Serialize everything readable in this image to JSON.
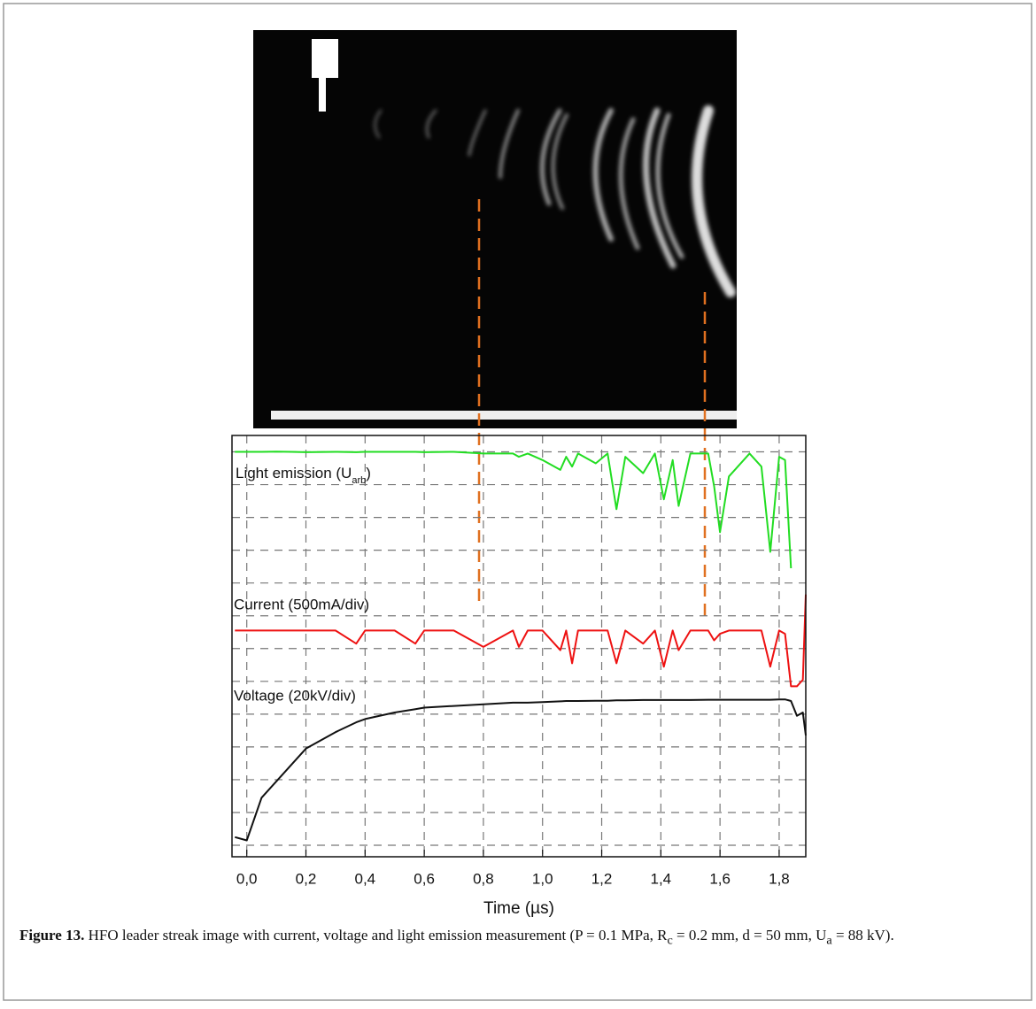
{
  "chart_data": {
    "type": "line",
    "x": [
      -0.04,
      0.0,
      0.05,
      0.1,
      0.15,
      0.2,
      0.3,
      0.37,
      0.4,
      0.5,
      0.57,
      0.6,
      0.7,
      0.8,
      0.9,
      0.92,
      0.95,
      1.0,
      1.06,
      1.08,
      1.1,
      1.12,
      1.18,
      1.22,
      1.25,
      1.28,
      1.34,
      1.38,
      1.41,
      1.44,
      1.46,
      1.5,
      1.56,
      1.58,
      1.6,
      1.63,
      1.7,
      1.74,
      1.77,
      1.8,
      1.82,
      1.84,
      1.86,
      1.88,
      1.89
    ],
    "series": [
      {
        "color": "#22dd22",
        "values": [
          12.0,
          12.0,
          12.0,
          12.01,
          12.0,
          11.99,
          12.0,
          11.99,
          12.0,
          12.0,
          12.0,
          11.99,
          12.0,
          11.95,
          11.95,
          11.85,
          11.95,
          11.75,
          11.45,
          11.85,
          11.55,
          11.95,
          11.65,
          11.95,
          10.25,
          11.85,
          11.35,
          11.95,
          10.55,
          11.75,
          10.35,
          11.95,
          11.95,
          10.95,
          9.55,
          11.25,
          11.95,
          11.55,
          8.95,
          11.85,
          11.75,
          8.45,
          null,
          null,
          null
        ]
      },
      {
        "color": "#ee1111",
        "values": [
          6.55,
          6.55,
          6.55,
          6.55,
          6.55,
          6.55,
          6.55,
          6.15,
          6.55,
          6.55,
          6.15,
          6.55,
          6.55,
          6.05,
          6.55,
          6.05,
          6.55,
          6.55,
          5.95,
          6.55,
          5.55,
          6.55,
          6.55,
          6.55,
          5.55,
          6.55,
          6.15,
          6.55,
          5.45,
          6.55,
          5.95,
          6.55,
          6.55,
          6.25,
          6.45,
          6.55,
          6.55,
          6.55,
          5.45,
          6.55,
          6.45,
          4.85,
          4.85,
          5.05,
          7.65
        ]
      },
      {
        "color": "#111111",
        "values": [
          0.25,
          0.15,
          1.45,
          1.95,
          2.45,
          2.95,
          3.45,
          3.75,
          3.85,
          4.05,
          4.15,
          4.2,
          4.25,
          4.3,
          4.35,
          4.35,
          4.35,
          4.37,
          4.39,
          4.4,
          4.4,
          4.4,
          4.41,
          4.41,
          4.42,
          4.42,
          4.43,
          4.43,
          4.43,
          4.43,
          4.43,
          4.43,
          4.44,
          4.44,
          4.44,
          4.44,
          4.44,
          4.44,
          4.44,
          4.45,
          4.45,
          4.4,
          3.95,
          4.05,
          3.35
        ]
      }
    ],
    "xlim": [
      -0.05,
      1.89
    ],
    "xticks": [
      {
        "value": 0,
        "label": "0,0"
      },
      {
        "value": 0.2,
        "label": "0,2"
      },
      {
        "value": 0.4,
        "label": "0,4"
      },
      {
        "value": 0.6,
        "label": "0,6"
      },
      {
        "value": 0.8,
        "label": "0,8"
      },
      {
        "value": 1.0,
        "label": "1,0"
      },
      {
        "value": 1.2,
        "label": "1,2"
      },
      {
        "value": 1.4,
        "label": "1,4"
      },
      {
        "value": 1.6,
        "label": "1,6"
      },
      {
        "value": 1.8,
        "label": "1,8"
      }
    ],
    "ylim": [
      -0.35,
      12.5
    ],
    "yticks": [
      0,
      1,
      2,
      3,
      4,
      5,
      6,
      7,
      8,
      9,
      10,
      11,
      12
    ],
    "grid": true,
    "xlabel": "Time (µs)",
    "light_label": [
      "Light emission (U",
      "arb",
      ")"
    ],
    "current_label": "Current (500mA/div)",
    "voltage_label": "Voltage (20kV/div)"
  },
  "caption": {
    "label": "Figure 13.",
    "parts": [
      " HFO leader streak image with current, voltage and light emission measurement (P = 0.1 MPa, R",
      "c",
      " = 0.2 mm, d = 50 mm, U",
      "a",
      " = 88 kV)."
    ]
  }
}
